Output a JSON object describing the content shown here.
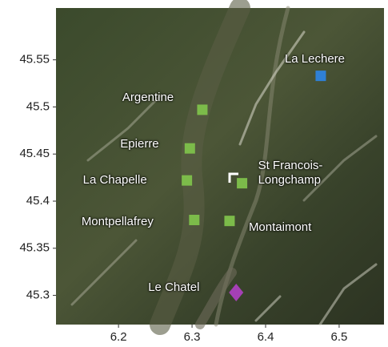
{
  "chart_data": {
    "type": "scatter",
    "xlim": [
      6.115,
      6.561
    ],
    "ylim": [
      45.269,
      45.605
    ],
    "xticks": [
      6.2,
      6.3,
      6.4,
      6.5
    ],
    "yticks": [
      45.3,
      45.35,
      45.4,
      45.45,
      45.5,
      45.55
    ],
    "points": [
      {
        "label": "La Lechere",
        "x": 6.475,
        "y": 45.533,
        "color": "#2f80d6",
        "marker": "square"
      },
      {
        "label": "Argentine",
        "x": 6.314,
        "y": 45.497,
        "color": "#7cbb4a",
        "marker": "square"
      },
      {
        "label": "Epierre",
        "x": 6.297,
        "y": 45.456,
        "color": "#7cbb4a",
        "marker": "square"
      },
      {
        "label": "La Chapelle",
        "x": 6.293,
        "y": 45.422,
        "color": "#7cbb4a",
        "marker": "square"
      },
      {
        "label": "St Francois-Longchamp",
        "x": 6.368,
        "y": 45.419,
        "color": "#7cbb4a",
        "marker": "square"
      },
      {
        "label": "Montpellafrey",
        "x": 6.303,
        "y": 45.38,
        "color": "#7cbb4a",
        "marker": "square"
      },
      {
        "label": "Montaimont",
        "x": 6.351,
        "y": 45.379,
        "color": "#7cbb4a",
        "marker": "square"
      },
      {
        "label": "Le Chatel",
        "x": 6.36,
        "y": 45.303,
        "color": "#a540b5",
        "marker": "diamond"
      }
    ]
  }
}
